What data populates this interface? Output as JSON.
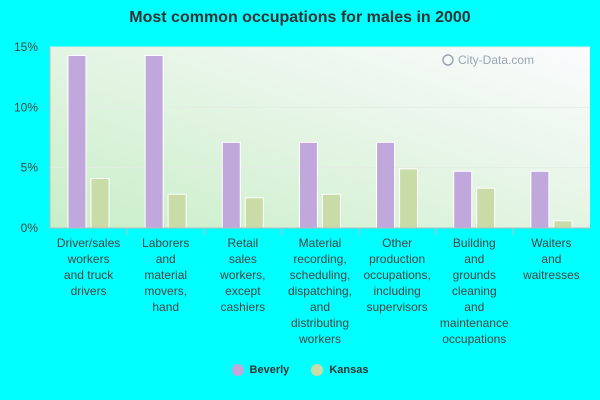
{
  "chart_data": {
    "type": "bar",
    "title": "Most common occupations for males in 2000",
    "categories": [
      [
        "Driver/sales",
        "workers",
        "and truck",
        "drivers"
      ],
      [
        "Laborers",
        "and",
        "material",
        "movers,",
        "hand"
      ],
      [
        "Retail",
        "sales",
        "workers,",
        "except",
        "cashiers"
      ],
      [
        "Material",
        "recording,",
        "scheduling,",
        "dispatching,",
        "and",
        "distributing",
        "workers"
      ],
      [
        "Other",
        "production",
        "occupations,",
        "including",
        "supervisors"
      ],
      [
        "Building",
        "and",
        "grounds",
        "cleaning",
        "and",
        "maintenance",
        "occupations"
      ],
      [
        "Waiters",
        "and",
        "waitresses"
      ]
    ],
    "series": [
      {
        "name": "Beverly",
        "color": "#c0a8dc",
        "values": [
          14.3,
          14.3,
          7.1,
          7.1,
          7.1,
          4.7,
          4.7
        ]
      },
      {
        "name": "Kansas",
        "color": "#c9dba6",
        "values": [
          4.1,
          2.8,
          2.5,
          2.8,
          4.9,
          3.3,
          0.6
        ]
      }
    ],
    "ylim": [
      0,
      15
    ],
    "yticks": [
      0,
      5,
      10,
      15
    ],
    "ytick_labels": [
      "0%",
      "5%",
      "10%",
      "15%"
    ],
    "xlabel": "",
    "ylabel": "",
    "grid": true,
    "legend_position": "bottom-center"
  },
  "watermark": "City-Data.com"
}
